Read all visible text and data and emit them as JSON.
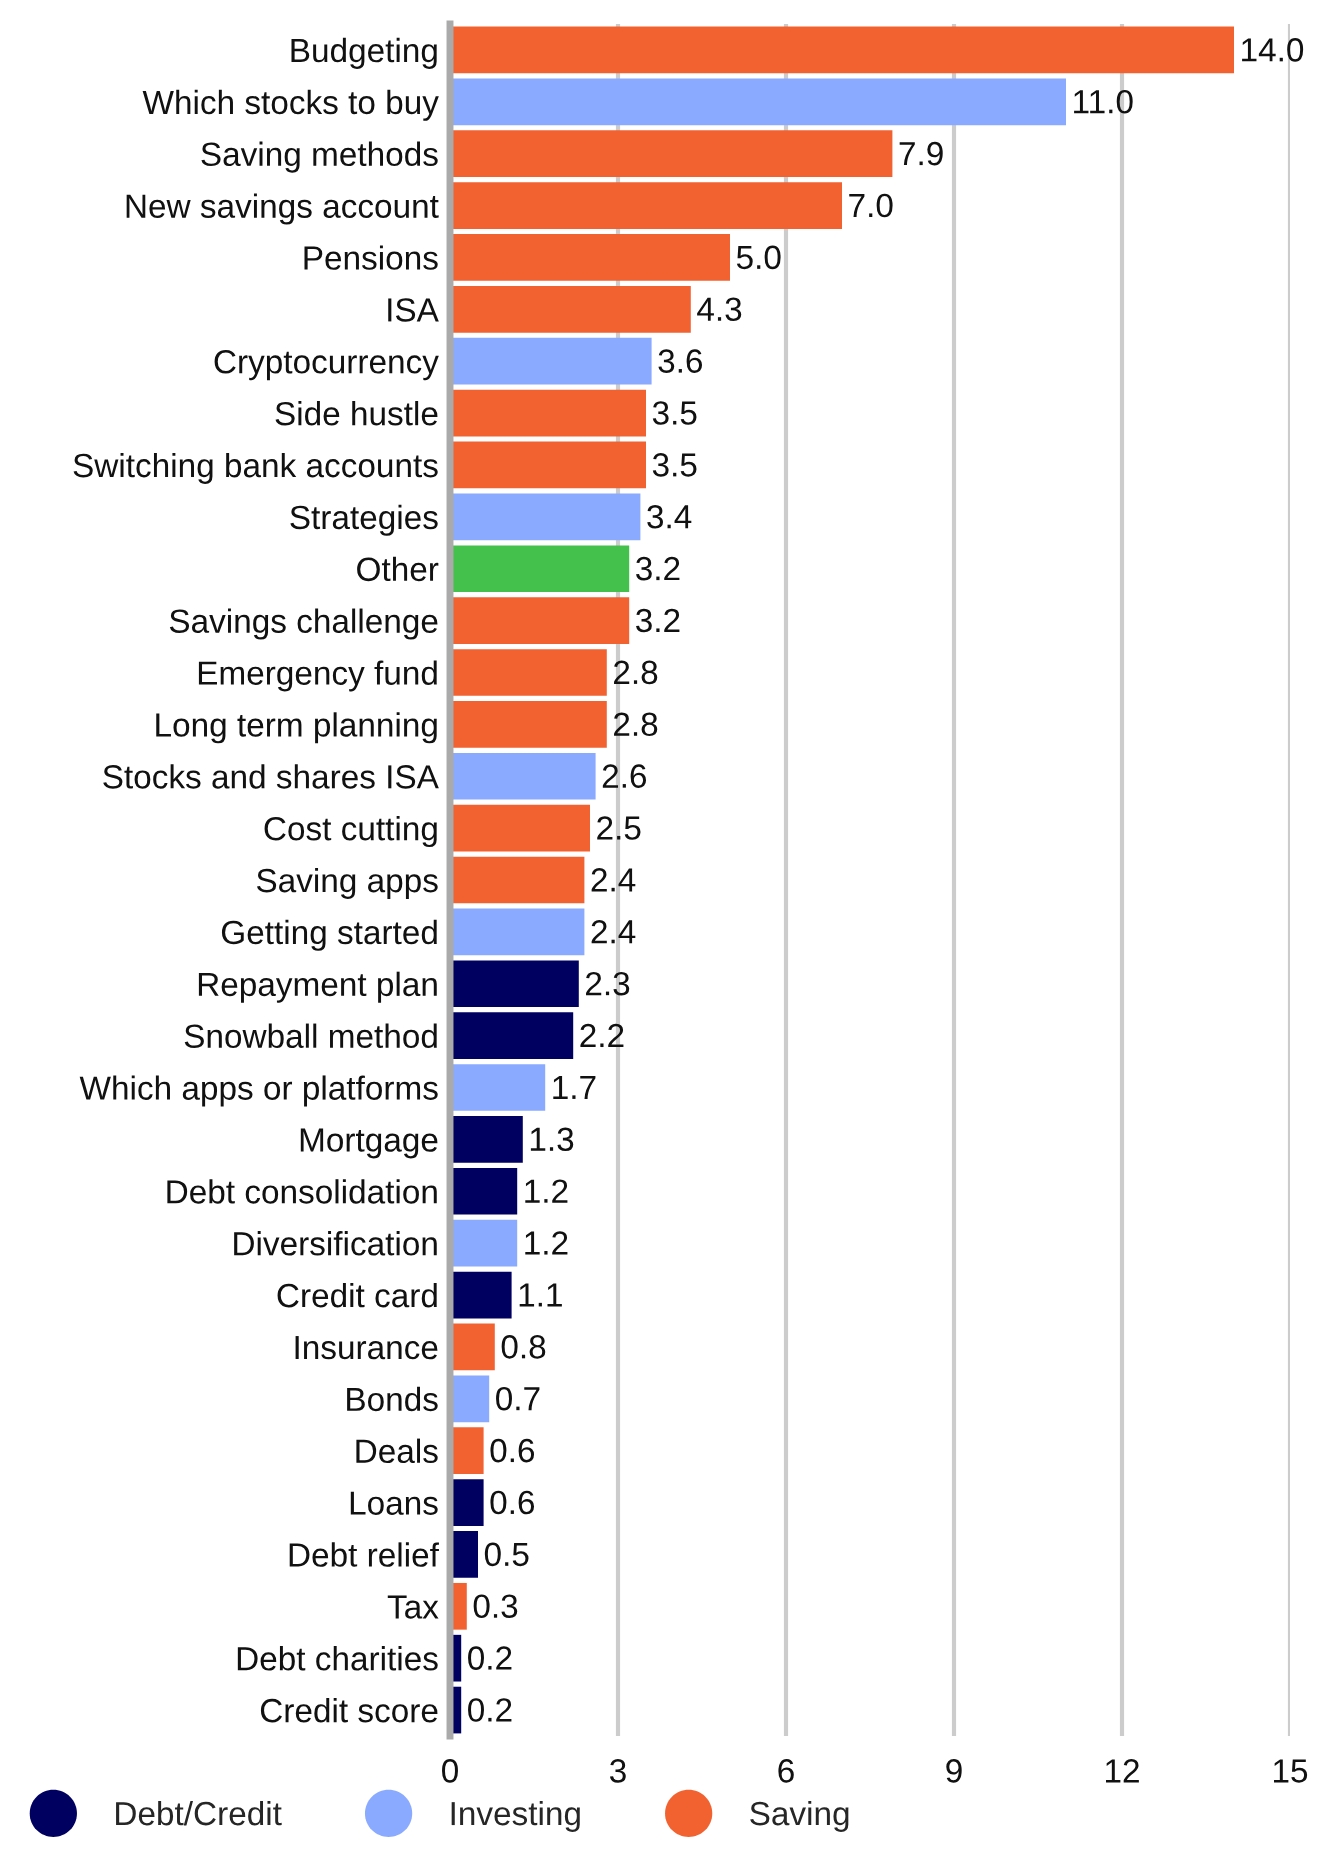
{
  "chart_data": {
    "type": "bar",
    "orientation": "horizontal",
    "stacked": true,
    "categories": [
      "Budgeting",
      "Which stocks to buy",
      "Saving methods",
      "New savings account",
      "Pensions",
      "ISA",
      "Cryptocurrency",
      "Side hustle",
      "Switching bank accounts",
      "Strategies",
      "Other",
      "Savings challenge",
      "Emergency fund",
      "Long term planning",
      "Stocks and shares ISA",
      "Cost cutting",
      "Saving apps",
      "Getting started",
      "Repayment plan",
      "Snowball method",
      "Which apps or platforms",
      "Mortgage",
      "Debt consolidation",
      "Diversification",
      "Credit card",
      "Insurance",
      "Bonds",
      "Deals",
      "Loans",
      "Debt relief",
      "Tax",
      "Debt charities",
      "Credit score"
    ],
    "series": [
      {
        "name": "Debt/Credit",
        "color": "#000060",
        "values": [
          null,
          null,
          null,
          null,
          null,
          null,
          null,
          null,
          null,
          null,
          null,
          null,
          null,
          null,
          null,
          null,
          null,
          null,
          2.3,
          2.2,
          null,
          1.3,
          1.2,
          null,
          1.1,
          null,
          null,
          null,
          0.6,
          0.5,
          null,
          0.2,
          0.2
        ],
        "value_labels": [
          null,
          null,
          null,
          null,
          null,
          null,
          null,
          null,
          null,
          null,
          null,
          null,
          null,
          null,
          null,
          null,
          null,
          null,
          "2.3",
          "2.2",
          null,
          "1.3",
          "1.2",
          null,
          "1.1",
          null,
          null,
          null,
          "0.6",
          "0.5",
          null,
          "0.2",
          "0.2"
        ]
      },
      {
        "name": "Investing",
        "color": "#8aaaff",
        "values": [
          null,
          11.0,
          null,
          null,
          null,
          null,
          3.6,
          null,
          null,
          3.4,
          null,
          null,
          null,
          null,
          2.6,
          null,
          null,
          2.4,
          null,
          null,
          1.7,
          null,
          null,
          1.2,
          null,
          null,
          0.7,
          null,
          null,
          null,
          null,
          null,
          null
        ],
        "value_labels": [
          null,
          "11.0",
          null,
          null,
          null,
          null,
          "3.6",
          null,
          null,
          "3.4",
          null,
          null,
          null,
          null,
          "2.6",
          null,
          null,
          "2.4",
          null,
          null,
          "1.7",
          null,
          null,
          "1.2",
          null,
          null,
          "0.7",
          null,
          null,
          null,
          null,
          null,
          null
        ]
      },
      {
        "name": "Saving",
        "color": "#f26230",
        "values": [
          14.0,
          null,
          7.9,
          7.0,
          5.0,
          4.3,
          null,
          3.5,
          3.5,
          null,
          null,
          3.2,
          2.8,
          2.8,
          null,
          2.5,
          2.4,
          null,
          null,
          null,
          null,
          null,
          null,
          null,
          null,
          0.8,
          null,
          0.6,
          null,
          null,
          0.3,
          null,
          null
        ],
        "value_labels": [
          "14.0",
          null,
          "7.9",
          "7.0",
          "5.0",
          "4.3",
          null,
          "3.5",
          "3.5",
          null,
          null,
          "3.2",
          "2.8",
          "2.8",
          null,
          "2.5",
          "2.4",
          null,
          null,
          null,
          null,
          null,
          null,
          null,
          null,
          "0.8",
          null,
          "0.6",
          null,
          null,
          "0.3",
          null,
          null
        ]
      },
      {
        "color": "#44c04c",
        "values": [
          null,
          null,
          null,
          null,
          null,
          null,
          null,
          null,
          null,
          null,
          3.2,
          null,
          null,
          null,
          null,
          null,
          null,
          null,
          null,
          null,
          null,
          null,
          null,
          null,
          null,
          null,
          null,
          null,
          null,
          null,
          null,
          null,
          null
        ],
        "value_labels": [
          null,
          null,
          null,
          null,
          null,
          null,
          null,
          null,
          null,
          null,
          "3.2",
          null,
          null,
          null,
          null,
          null,
          null,
          null,
          null,
          null,
          null,
          null,
          null,
          null,
          null,
          null,
          null,
          null,
          null,
          null,
          null,
          null,
          null
        ]
      }
    ],
    "xlim": [
      0,
      15
    ],
    "xticks": [
      0,
      3,
      6,
      9,
      12,
      15
    ],
    "grid": "x",
    "legend": "bottom"
  }
}
